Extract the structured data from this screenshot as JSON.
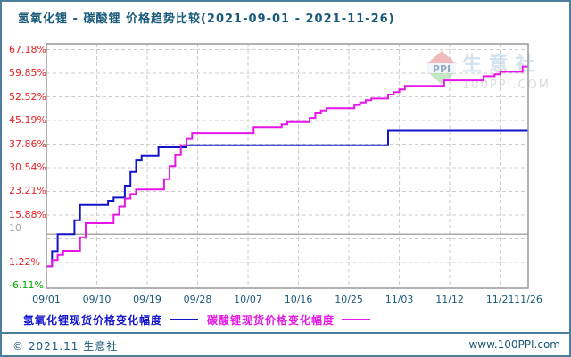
{
  "title": "氢氧化锂 - 碳酸锂 价格趋势比较(2021-09-01 - 2021-11-26)",
  "colors": {
    "title_text": "#19597a",
    "axis_label_red": "#e62222",
    "axis_label_green": "#00a800",
    "axis_label_gray": "#a3a3a3",
    "x_label_teal": "#19597a",
    "plot_border": "#999999",
    "gridline": "#cccccc",
    "reference_line": "#aaaaaa",
    "series_blue": "#1414cd",
    "series_magenta": "#e616e6",
    "frame_teal": "#4f7e9d",
    "footer_text": "#19597a",
    "watermark_brand": "#b9d2e4",
    "watermark_domain": "#c8c8c8",
    "watermark_logo_red": "#e98f8f",
    "watermark_logo_green": "#9ed89e",
    "watermark_logo_text": "#5577aa"
  },
  "watermark": {
    "brand": "生 意 社",
    "domain": "100PPI.COM",
    "logo_text": "PPI"
  },
  "legend": [
    {
      "label": "氢氧化锂现货价格变化幅度",
      "color": "#1414cd"
    },
    {
      "label": "碳酸锂现货价格变化幅度",
      "color": "#e616e6"
    }
  ],
  "footer": {
    "copyright": "© 2021.11 生意社",
    "site": "www.100PPI.com"
  },
  "chart_data": {
    "type": "line",
    "title": "氢氧化锂 - 碳酸锂 价格趋势比较(2021-09-01 - 2021-11-26)",
    "xlabel": "",
    "ylabel": "价格变化幅度 (%)",
    "x_start_date": "2021-09-01",
    "x_end_date": "2021-11-26",
    "x_total_days": 86,
    "ylim": [
      -8.5,
      69.5
    ],
    "grid": true,
    "legend_position": "bottom",
    "y_gridline_values": [
      67.18,
      59.85,
      52.52,
      45.19,
      37.86,
      30.54,
      23.21,
      15.88,
      8.55,
      1.22,
      -6.11
    ],
    "y_axis_labels": [
      {
        "text": "67.18%",
        "value": 67.18,
        "color": "#e62222",
        "dy": 0
      },
      {
        "text": "59.85%",
        "value": 59.85,
        "color": "#e62222",
        "dy": 0
      },
      {
        "text": "52.52%",
        "value": 52.52,
        "color": "#e62222",
        "dy": 0
      },
      {
        "text": "45.19%",
        "value": 45.19,
        "color": "#e62222",
        "dy": 0
      },
      {
        "text": "37.86%",
        "value": 37.86,
        "color": "#e62222",
        "dy": 0
      },
      {
        "text": "30.54%",
        "value": 30.54,
        "color": "#e62222",
        "dy": 0
      },
      {
        "text": "23.21%",
        "value": 23.21,
        "color": "#e62222",
        "dy": 0
      },
      {
        "text": "15.88%",
        "value": 15.88,
        "color": "#e62222",
        "dy": 0
      },
      {
        "text": "10",
        "value": 10,
        "color": "#a3a3a3",
        "dy": -6
      },
      {
        "text": "1.22%",
        "value": 1.22,
        "color": "#e62222",
        "dy": 0
      },
      {
        "text": "-6.11%",
        "value": -6.11,
        "color": "#00a800",
        "dy": 0
      }
    ],
    "reference_line": {
      "value": 10,
      "label": "10",
      "style": "solid-gray"
    },
    "x_ticks": [
      {
        "label": "09/01",
        "day": 0
      },
      {
        "label": "09/10",
        "day": 9
      },
      {
        "label": "09/19",
        "day": 18
      },
      {
        "label": "09/28",
        "day": 27
      },
      {
        "label": "10/07",
        "day": 36
      },
      {
        "label": "10/16",
        "day": 45
      },
      {
        "label": "10/25",
        "day": 54
      },
      {
        "label": "11/03",
        "day": 63
      },
      {
        "label": "11/12",
        "day": 72
      },
      {
        "label": "11/21",
        "day": 81
      },
      {
        "label": "11/26",
        "day": 86
      }
    ],
    "series": [
      {
        "name": "氢氧化锂现货价格变化幅度",
        "color": "#1414cd",
        "step": true,
        "points_day_pct": [
          [
            0,
            0
          ],
          [
            1,
            4.7
          ],
          [
            2,
            10
          ],
          [
            4,
            10
          ],
          [
            5,
            14.3
          ],
          [
            6,
            19
          ],
          [
            10,
            19
          ],
          [
            11,
            20.3
          ],
          [
            12,
            21.3
          ],
          [
            13,
            21.3
          ],
          [
            14,
            25
          ],
          [
            15,
            29.2
          ],
          [
            16,
            33
          ],
          [
            17,
            34.2
          ],
          [
            19,
            34.2
          ],
          [
            20,
            36.9
          ],
          [
            24,
            36.9
          ],
          [
            25,
            37.5
          ],
          [
            60,
            37.5
          ],
          [
            61,
            42
          ],
          [
            86,
            42
          ]
        ]
      },
      {
        "name": "碳酸锂现货价格变化幅度",
        "color": "#e616e6",
        "step": true,
        "points_day_pct": [
          [
            0,
            0
          ],
          [
            1,
            2
          ],
          [
            2,
            3.5
          ],
          [
            3,
            4.8
          ],
          [
            5,
            4.8
          ],
          [
            6,
            9
          ],
          [
            7,
            13.4
          ],
          [
            11,
            13.4
          ],
          [
            12,
            16
          ],
          [
            13,
            18.5
          ],
          [
            14,
            21
          ],
          [
            15,
            22.4
          ],
          [
            16,
            23.8
          ],
          [
            20,
            23.8
          ],
          [
            21,
            27
          ],
          [
            22,
            31
          ],
          [
            23,
            34.5
          ],
          [
            24,
            37.5
          ],
          [
            25,
            39.5
          ],
          [
            26,
            41.3
          ],
          [
            36,
            41.3
          ],
          [
            37,
            43.2
          ],
          [
            41,
            43.2
          ],
          [
            42,
            44
          ],
          [
            43,
            44.7
          ],
          [
            46,
            44.7
          ],
          [
            47,
            46
          ],
          [
            48,
            47.4
          ],
          [
            49,
            48.3
          ],
          [
            50,
            49
          ],
          [
            54,
            49
          ],
          [
            55,
            50
          ],
          [
            56,
            50.8
          ],
          [
            57,
            51.5
          ],
          [
            58,
            52
          ],
          [
            60,
            52
          ],
          [
            61,
            53.2
          ],
          [
            62,
            54
          ],
          [
            63,
            54.8
          ],
          [
            64,
            55.9
          ],
          [
            70,
            55.9
          ],
          [
            71,
            57.6
          ],
          [
            77,
            57.6
          ],
          [
            78,
            58.9
          ],
          [
            80,
            59.5
          ],
          [
            81,
            60.3
          ],
          [
            84,
            60.3
          ],
          [
            85,
            61.9
          ],
          [
            86,
            61.9
          ]
        ]
      }
    ]
  }
}
